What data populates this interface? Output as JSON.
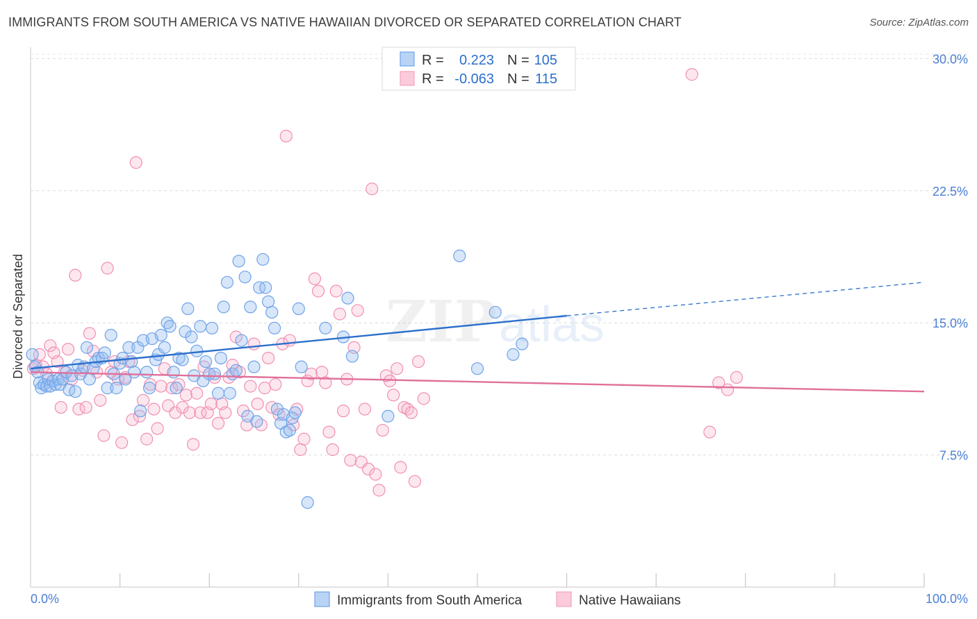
{
  "title": "IMMIGRANTS FROM SOUTH AMERICA VS NATIVE HAWAIIAN DIVORCED OR SEPARATED CORRELATION CHART",
  "source": "Source: ZipAtlas.com",
  "colors": {
    "blue": "#6fa3e8",
    "blue_line": "#2b6fcc",
    "pink": "#f4a3bd",
    "pink_line": "#e0709a",
    "tick": "#4a7fd4"
  },
  "legend": {
    "blue": {
      "r_label": "R =",
      "r_value": "0.223",
      "n_label": "N =",
      "n_value": "105"
    },
    "pink": {
      "r_label": "R =",
      "r_value": "-0.063",
      "n_label": "N =",
      "n_value": "115"
    }
  },
  "bottom_legend": [
    "Immigrants from South America",
    "Native Hawaiians"
  ],
  "chart_data": {
    "type": "scatter",
    "xlabel": "",
    "ylabel": "Divorced or Separated",
    "xlim": [
      0,
      100
    ],
    "ylim": [
      0,
      31
    ],
    "x_tick_labels": [
      "0.0%",
      "100.0%"
    ],
    "y_ticks": [
      7.5,
      15.0,
      22.5,
      30.0
    ],
    "y_tick_labels": [
      "7.5%",
      "15.0%",
      "22.5%",
      "30.0%"
    ],
    "series": [
      {
        "name": "Immigrants from South America",
        "color": "#6fa3e8",
        "trend": {
          "x": [
            0,
            60,
            100
          ],
          "y": [
            12.4,
            15.4,
            17.3
          ],
          "solid_until": 60
        },
        "points": [
          [
            0.2,
            13.2
          ],
          [
            0.5,
            12.5
          ],
          [
            0.8,
            12.2
          ],
          [
            1,
            11.6
          ],
          [
            1.2,
            11.3
          ],
          [
            1.5,
            11.5
          ],
          [
            1.8,
            11.4
          ],
          [
            2,
            11.8
          ],
          [
            2.2,
            11.4
          ],
          [
            2.5,
            11.7
          ],
          [
            2.8,
            11.5
          ],
          [
            3.1,
            11.8
          ],
          [
            3.3,
            11.5
          ],
          [
            3.6,
            11.8
          ],
          [
            4,
            12.2
          ],
          [
            4.3,
            11.2
          ],
          [
            4.6,
            12
          ],
          [
            5,
            11.1
          ],
          [
            5.3,
            12.6
          ],
          [
            5.6,
            12.1
          ],
          [
            6,
            12.5
          ],
          [
            6.3,
            13.6
          ],
          [
            6.6,
            11.8
          ],
          [
            7,
            12.4
          ],
          [
            7.3,
            12.8
          ],
          [
            7.6,
            13
          ],
          [
            8,
            13
          ],
          [
            8.3,
            13.3
          ],
          [
            8.6,
            11.3
          ],
          [
            9,
            14.3
          ],
          [
            9.3,
            12.1
          ],
          [
            9.6,
            11.3
          ],
          [
            10,
            12.7
          ],
          [
            10.3,
            13
          ],
          [
            10.6,
            11.8
          ],
          [
            11,
            13.6
          ],
          [
            11.3,
            12.8
          ],
          [
            11.6,
            12.2
          ],
          [
            12,
            13.6
          ],
          [
            12.3,
            10
          ],
          [
            12.6,
            14
          ],
          [
            13,
            12.2
          ],
          [
            13.3,
            11.3
          ],
          [
            13.6,
            14.1
          ],
          [
            14,
            12.9
          ],
          [
            14.3,
            13.2
          ],
          [
            14.6,
            14.3
          ],
          [
            15,
            13.6
          ],
          [
            15.3,
            15
          ],
          [
            15.6,
            14.8
          ],
          [
            16,
            12.2
          ],
          [
            16.3,
            11.3
          ],
          [
            16.6,
            13
          ],
          [
            17,
            12.9
          ],
          [
            17.3,
            14.5
          ],
          [
            17.6,
            15.8
          ],
          [
            18,
            14.2
          ],
          [
            18.3,
            12
          ],
          [
            18.6,
            13.4
          ],
          [
            19,
            14.8
          ],
          [
            19.3,
            11.7
          ],
          [
            19.6,
            12.8
          ],
          [
            20,
            12.1
          ],
          [
            20.3,
            14.7
          ],
          [
            20.6,
            12.1
          ],
          [
            21,
            11
          ],
          [
            21.3,
            13
          ],
          [
            21.6,
            15.9
          ],
          [
            22,
            17.3
          ],
          [
            22.3,
            11
          ],
          [
            22.6,
            12.1
          ],
          [
            23,
            12.3
          ],
          [
            23.3,
            18.5
          ],
          [
            23.6,
            14
          ],
          [
            24,
            17.6
          ],
          [
            24.3,
            9.7
          ],
          [
            24.6,
            15.9
          ],
          [
            25,
            12.5
          ],
          [
            25.3,
            9.4
          ],
          [
            25.6,
            17
          ],
          [
            26,
            18.6
          ],
          [
            26.3,
            17
          ],
          [
            26.6,
            16.2
          ],
          [
            27,
            15.6
          ],
          [
            27.3,
            14.7
          ],
          [
            27.6,
            10.1
          ],
          [
            28,
            9.3
          ],
          [
            28.3,
            9.8
          ],
          [
            28.6,
            8.8
          ],
          [
            29,
            8.9
          ],
          [
            29.3,
            9.6
          ],
          [
            29.6,
            9.9
          ],
          [
            30,
            15.8
          ],
          [
            30.3,
            12.5
          ],
          [
            31,
            4.8
          ],
          [
            33,
            14.7
          ],
          [
            35,
            14.2
          ],
          [
            35.5,
            16.4
          ],
          [
            36,
            13.1
          ],
          [
            40,
            9.7
          ],
          [
            48,
            18.8
          ],
          [
            50,
            12.4
          ],
          [
            52,
            15.6
          ],
          [
            54,
            13.2
          ],
          [
            55,
            13.8
          ]
        ]
      },
      {
        "name": "Native Hawaiians",
        "color": "#f4a3bd",
        "trend": {
          "x": [
            0,
            100
          ],
          "y": [
            12.2,
            11.1
          ],
          "solid_until": 100
        },
        "points": [
          [
            0.3,
            12.4
          ],
          [
            0.6,
            12.6
          ],
          [
            1,
            13.2
          ],
          [
            1.4,
            12.5
          ],
          [
            1.8,
            12.1
          ],
          [
            2.2,
            13.7
          ],
          [
            2.6,
            13.3
          ],
          [
            3,
            12.8
          ],
          [
            3.4,
            10.2
          ],
          [
            3.8,
            12.2
          ],
          [
            4.2,
            13.5
          ],
          [
            4.6,
            11.8
          ],
          [
            5,
            17.7
          ],
          [
            5.4,
            10.1
          ],
          [
            5.8,
            12.3
          ],
          [
            6.2,
            10.2
          ],
          [
            6.6,
            14.4
          ],
          [
            7,
            13.4
          ],
          [
            7.4,
            12.2
          ],
          [
            7.8,
            10.6
          ],
          [
            8.2,
            8.6
          ],
          [
            8.6,
            18.1
          ],
          [
            9,
            12.2
          ],
          [
            9.4,
            12.8
          ],
          [
            9.8,
            11.8
          ],
          [
            10.2,
            8.2
          ],
          [
            10.6,
            11.9
          ],
          [
            11,
            12.8
          ],
          [
            11.4,
            9.5
          ],
          [
            11.8,
            24.1
          ],
          [
            12.2,
            9.7
          ],
          [
            12.6,
            10.6
          ],
          [
            13,
            8.4
          ],
          [
            13.4,
            11.5
          ],
          [
            13.8,
            10.1
          ],
          [
            14.2,
            9
          ],
          [
            14.6,
            11.4
          ],
          [
            15,
            12.4
          ],
          [
            15.4,
            10.3
          ],
          [
            15.8,
            11.3
          ],
          [
            16.2,
            9.9
          ],
          [
            16.6,
            11.5
          ],
          [
            17,
            10.2
          ],
          [
            17.4,
            10.9
          ],
          [
            17.8,
            9.9
          ],
          [
            18.2,
            8.1
          ],
          [
            18.6,
            11
          ],
          [
            19,
            9.9
          ],
          [
            19.4,
            12.5
          ],
          [
            19.8,
            9.9
          ],
          [
            20.2,
            10.4
          ],
          [
            20.6,
            11.9
          ],
          [
            21,
            9.3
          ],
          [
            21.4,
            10.4
          ],
          [
            21.8,
            9.9
          ],
          [
            22.2,
            11.9
          ],
          [
            22.6,
            12.6
          ],
          [
            23,
            14.2
          ],
          [
            23.4,
            12.2
          ],
          [
            23.8,
            10
          ],
          [
            24.2,
            9.2
          ],
          [
            24.6,
            11.4
          ],
          [
            25,
            13.8
          ],
          [
            25.4,
            10.4
          ],
          [
            25.8,
            9.2
          ],
          [
            26.2,
            11.3
          ],
          [
            26.6,
            13
          ],
          [
            27,
            10.2
          ],
          [
            27.4,
            11.5
          ],
          [
            27.8,
            9.8
          ],
          [
            28.2,
            13.8
          ],
          [
            28.6,
            25.6
          ],
          [
            29,
            14
          ],
          [
            29.4,
            9.2
          ],
          [
            29.8,
            10.1
          ],
          [
            30.2,
            7.8
          ],
          [
            30.6,
            8.4
          ],
          [
            31,
            11.7
          ],
          [
            31.4,
            12.1
          ],
          [
            31.8,
            17.5
          ],
          [
            32.2,
            16.8
          ],
          [
            32.6,
            12.2
          ],
          [
            33,
            11.6
          ],
          [
            33.4,
            8.8
          ],
          [
            33.8,
            7.8
          ],
          [
            34.2,
            16.8
          ],
          [
            34.6,
            15.5
          ],
          [
            35,
            10
          ],
          [
            35.4,
            11.8
          ],
          [
            35.8,
            7.2
          ],
          [
            36.2,
            13.6
          ],
          [
            36.6,
            15.7
          ],
          [
            37,
            7.1
          ],
          [
            37.4,
            10.1
          ],
          [
            37.8,
            6.7
          ],
          [
            38.2,
            22.6
          ],
          [
            38.6,
            6.4
          ],
          [
            39,
            5.5
          ],
          [
            39.4,
            8.9
          ],
          [
            39.8,
            12
          ],
          [
            40.2,
            11.7
          ],
          [
            40.6,
            10.9
          ],
          [
            41,
            12.4
          ],
          [
            41.4,
            6.8
          ],
          [
            41.8,
            10.2
          ],
          [
            42.2,
            10.1
          ],
          [
            42.6,
            9.9
          ],
          [
            43,
            6
          ],
          [
            43.4,
            12.8
          ],
          [
            44,
            10.7
          ],
          [
            74,
            29.1
          ],
          [
            76,
            8.8
          ],
          [
            77,
            11.6
          ],
          [
            78,
            11.2
          ],
          [
            79,
            11.9
          ]
        ]
      }
    ]
  }
}
